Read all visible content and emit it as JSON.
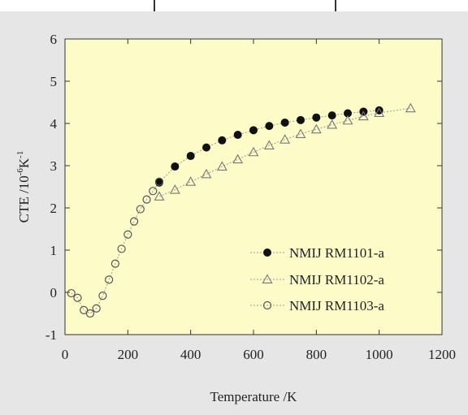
{
  "chart_data": {
    "type": "scatter",
    "title": "",
    "xlabel": "Temperature /K",
    "ylabel_parts": {
      "base": "CTE /10",
      "exp1": "-6",
      "mid": "K",
      "exp2": "-1"
    },
    "xlim": [
      0,
      1200
    ],
    "ylim": [
      -1,
      6
    ],
    "x_ticks": [
      "0",
      "200",
      "400",
      "600",
      "800",
      "1000",
      "1200"
    ],
    "y_ticks": [
      "-1",
      "0",
      "1",
      "2",
      "3",
      "4",
      "5",
      "6"
    ],
    "grid": false,
    "legend_position": "bottom-right",
    "colors": {
      "plot_background": "#fdfcc8",
      "outer_background": "#e6e6e6",
      "marker": "#111111",
      "line": "#9a9a9a"
    },
    "series": [
      {
        "name": "NMIJ RM1101-a",
        "marker": "filled-circle",
        "x": [
          300,
          350,
          400,
          450,
          500,
          550,
          600,
          650,
          700,
          750,
          800,
          850,
          900,
          950,
          1000
        ],
        "y": [
          2.6,
          2.98,
          3.23,
          3.43,
          3.6,
          3.73,
          3.84,
          3.94,
          4.02,
          4.08,
          4.14,
          4.19,
          4.24,
          4.28,
          4.31
        ]
      },
      {
        "name": "NMIJ RM1102-a",
        "marker": "open-triangle",
        "x": [
          300,
          350,
          400,
          450,
          500,
          550,
          600,
          650,
          700,
          750,
          800,
          850,
          900,
          950,
          1000,
          1100
        ],
        "y": [
          2.27,
          2.43,
          2.62,
          2.8,
          2.98,
          3.15,
          3.32,
          3.48,
          3.62,
          3.75,
          3.86,
          3.97,
          4.07,
          4.17,
          4.25,
          4.36
        ]
      },
      {
        "name": "NMIJ RM1103-a",
        "marker": "open-circle",
        "x": [
          20,
          40,
          60,
          80,
          100,
          120,
          140,
          160,
          180,
          200,
          220,
          240,
          260,
          280,
          300
        ],
        "y": [
          -0.02,
          -0.13,
          -0.42,
          -0.5,
          -0.38,
          -0.08,
          0.3,
          0.68,
          1.03,
          1.37,
          1.68,
          1.97,
          2.2,
          2.4,
          2.62
        ]
      }
    ]
  }
}
